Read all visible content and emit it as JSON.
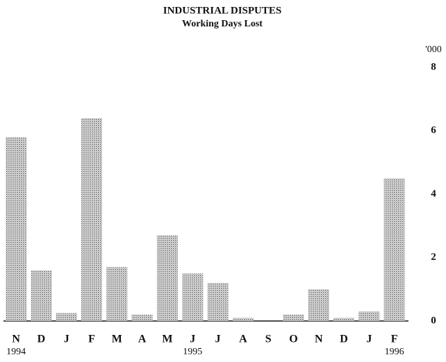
{
  "chart_data": {
    "type": "bar",
    "title": "INDUSTRIAL DISPUTES",
    "subtitle": "Working Days Lost",
    "y_unit_label": "'000",
    "categories": [
      "N",
      "D",
      "J",
      "F",
      "M",
      "A",
      "M",
      "J",
      "J",
      "A",
      "S",
      "O",
      "N",
      "D",
      "J",
      "F"
    ],
    "x_groups": [
      {
        "label": "1994",
        "at": 0
      },
      {
        "label": "1995",
        "at": 7
      },
      {
        "label": "1996",
        "at": 15
      }
    ],
    "values": [
      5.8,
      1.6,
      0.25,
      6.4,
      1.7,
      0.2,
      2.7,
      1.5,
      1.2,
      0.1,
      0,
      0.2,
      1.0,
      0.1,
      0.3,
      4.5
    ],
    "color": "#777777",
    "ylim": [
      0,
      8
    ],
    "yticks": [
      0,
      2,
      4,
      6,
      8
    ],
    "grid": false
  }
}
